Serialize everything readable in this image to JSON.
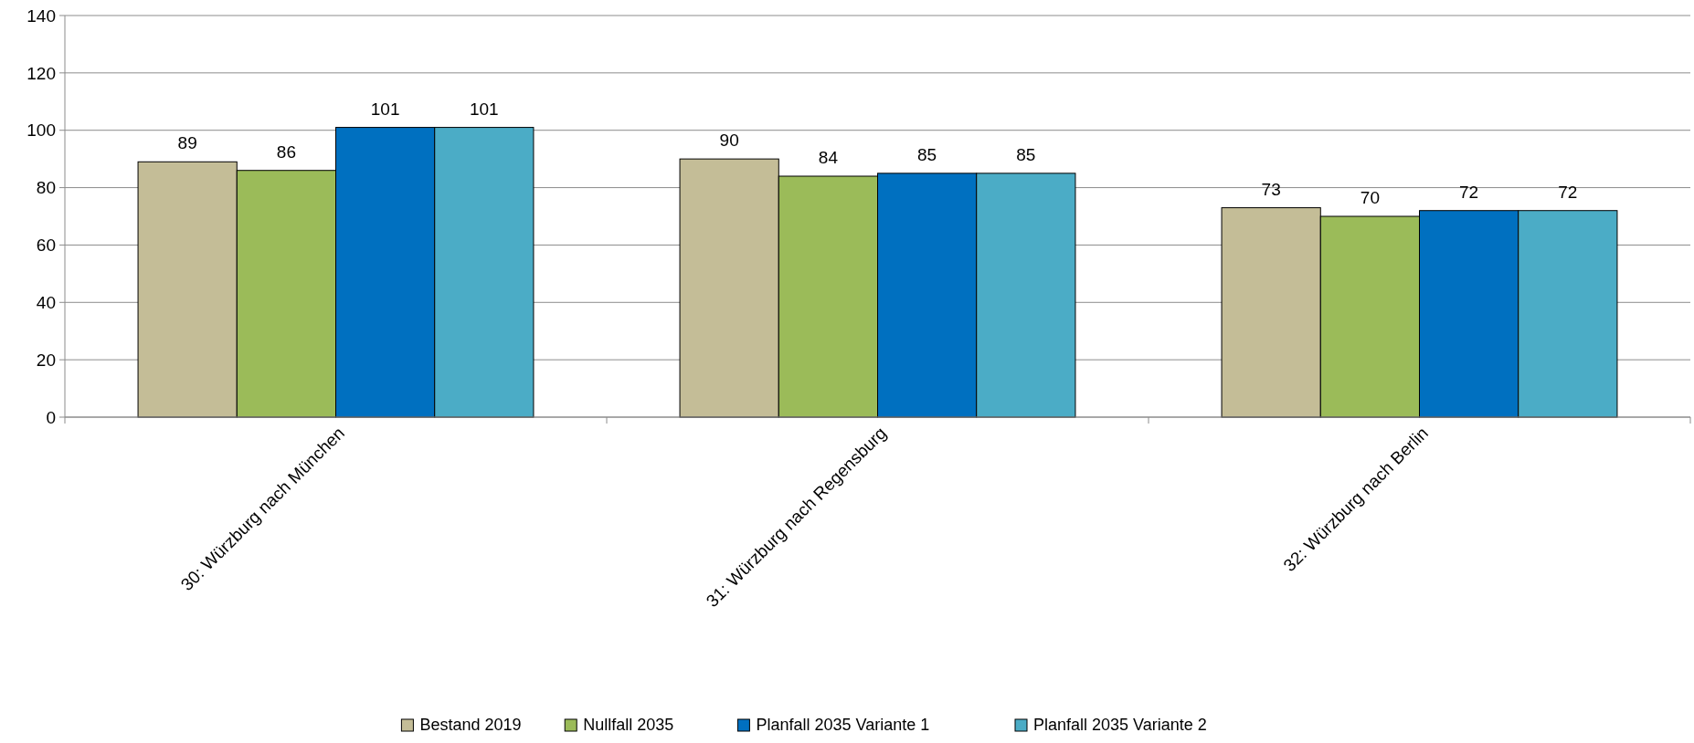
{
  "chart_data": {
    "type": "bar",
    "categories": [
      "30: Würzburg nach München",
      "31: Würzburg nach Regensburg",
      "32: Würzburg nach Berlin"
    ],
    "series": [
      {
        "name": "Bestand 2019",
        "color": "#c4bd97",
        "values": [
          89,
          90,
          73
        ]
      },
      {
        "name": "Nullfall 2035",
        "color": "#9bbb59",
        "values": [
          86,
          84,
          70
        ]
      },
      {
        "name": "Planfall 2035 Variante 1",
        "color": "#0070c0",
        "values": [
          101,
          85,
          72
        ]
      },
      {
        "name": "Planfall 2035 Variante 2",
        "color": "#4bacc6",
        "values": [
          101,
          85,
          72
        ]
      }
    ],
    "ylim": [
      0,
      140
    ],
    "yticks": [
      0,
      20,
      40,
      60,
      80,
      100,
      120,
      140
    ],
    "grid": "y",
    "legend": "bottom",
    "data_labels": true
  }
}
